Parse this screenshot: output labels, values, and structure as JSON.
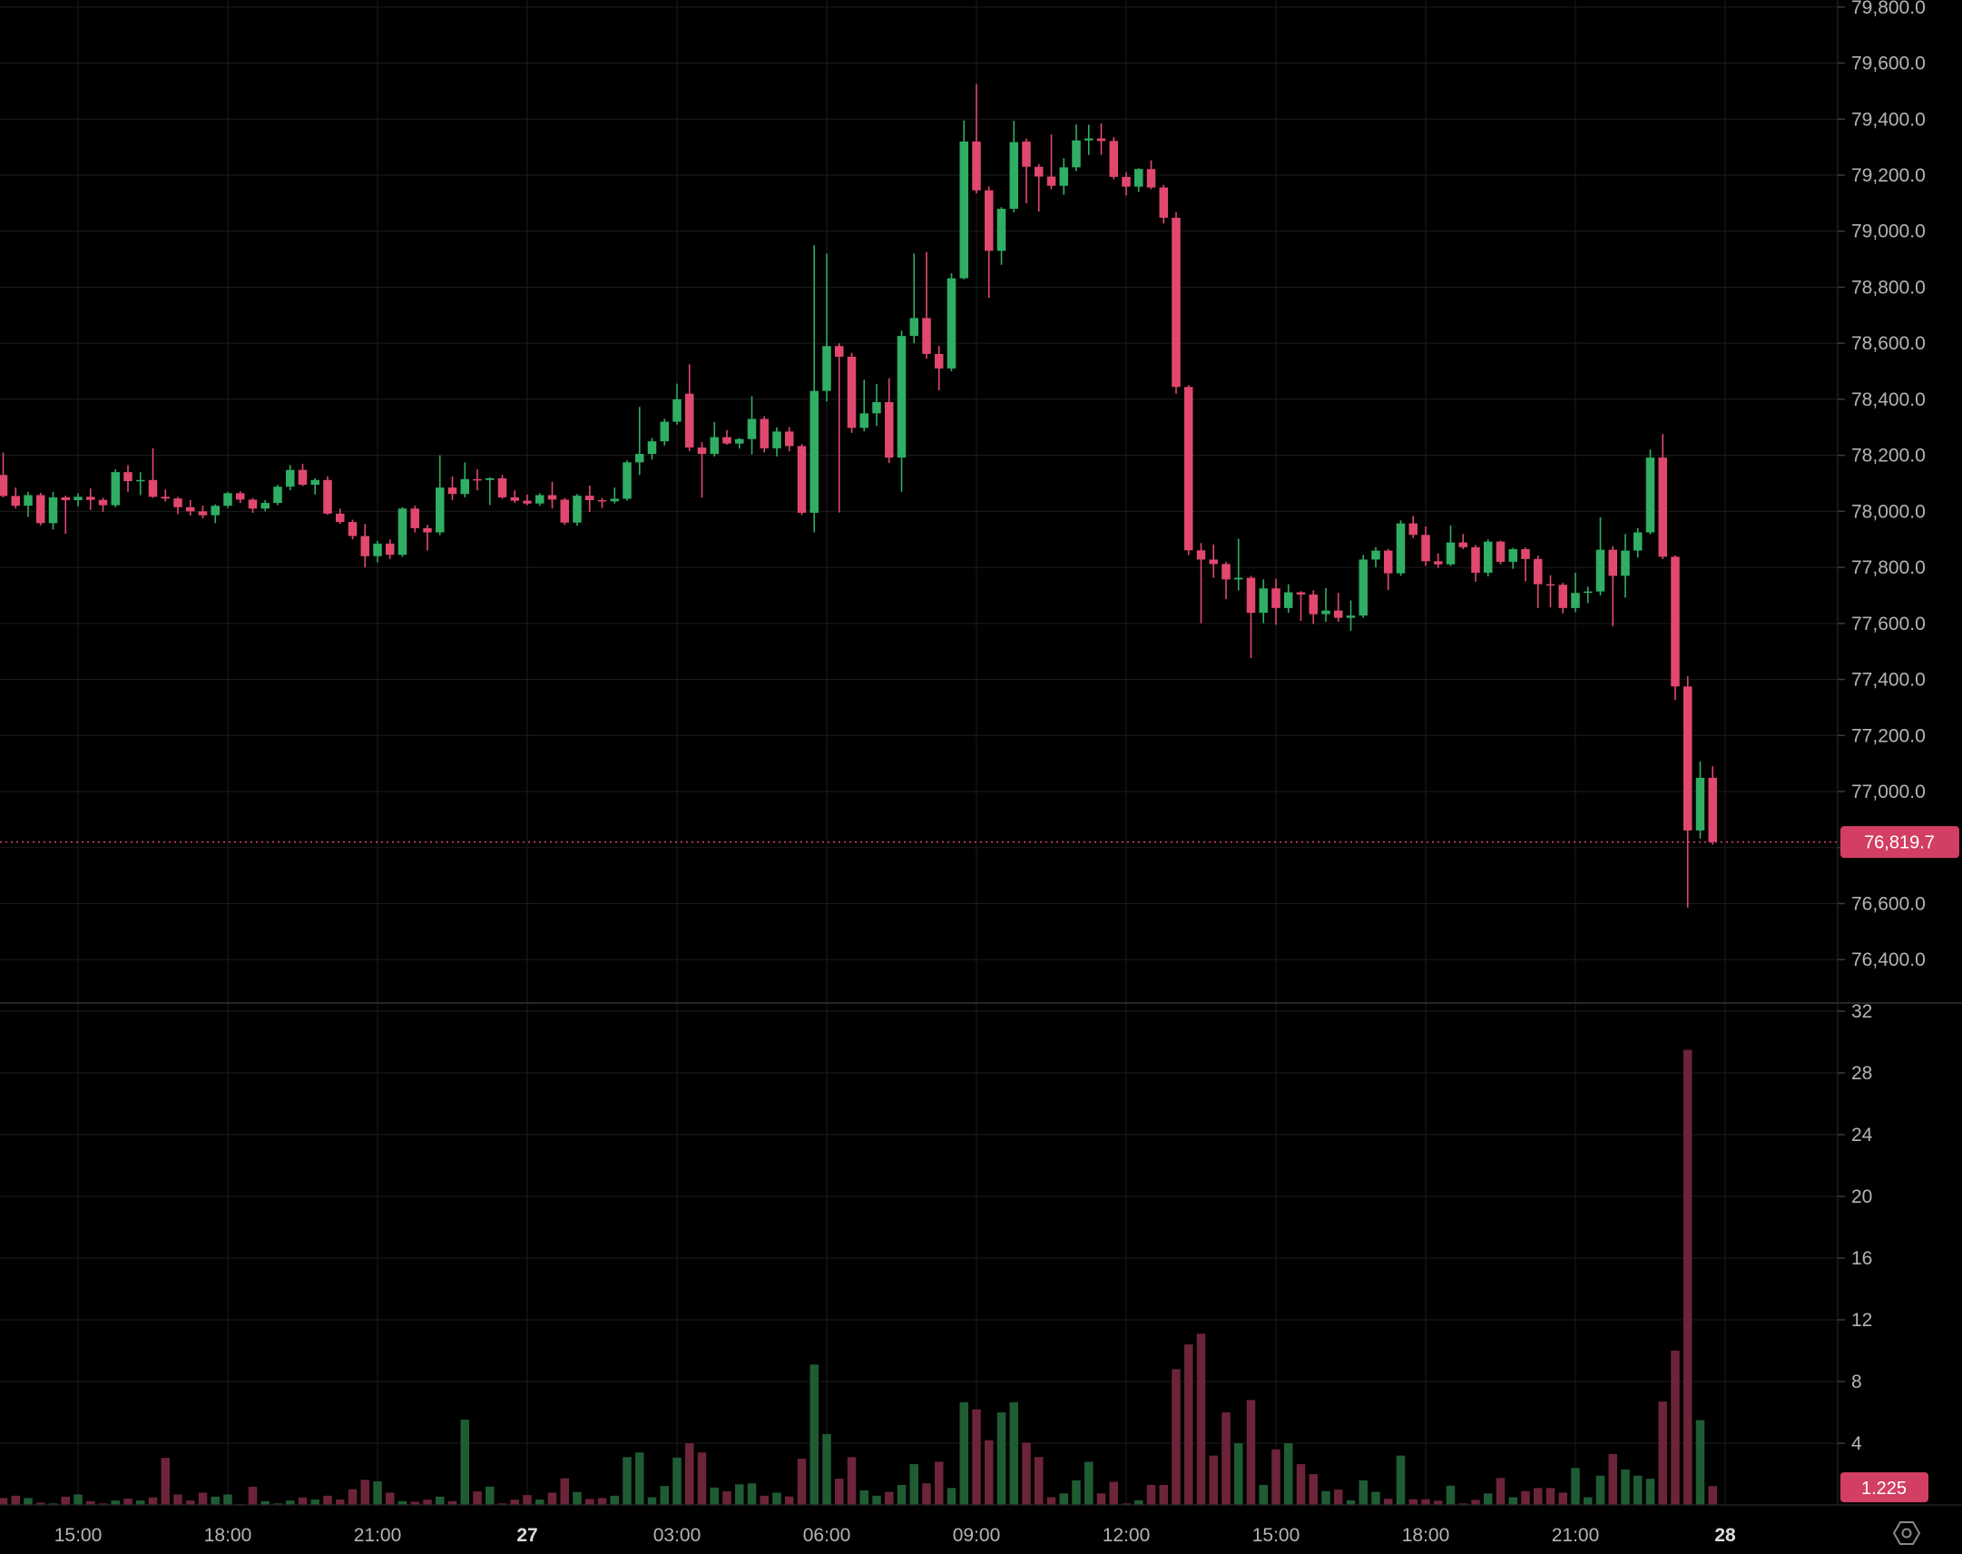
{
  "chart_data": {
    "type": "candlestick",
    "panes": [
      "price",
      "volume"
    ],
    "grid": true,
    "legend_position": "none",
    "last_price": {
      "text": "76,819.7",
      "value": 76819.7
    },
    "last_volume": {
      "text": "1.225",
      "value": 1.225
    },
    "price_axis": {
      "side": "right",
      "min": 76400,
      "max": 79800,
      "step": 200,
      "labels": [
        "79,800.0",
        "79,600.0",
        "79,400.0",
        "79,200.0",
        "79,000.0",
        "78,800.0",
        "78,600.0",
        "78,400.0",
        "78,200.0",
        "78,000.0",
        "77,800.0",
        "77,600.0",
        "77,400.0",
        "77,200.0",
        "77,000.0",
        "76,800.0",
        "76,600.0",
        "76,400.0"
      ]
    },
    "volume_axis": {
      "side": "right",
      "min": 0,
      "max": 32,
      "step": 4,
      "labels": [
        "32",
        "28",
        "24",
        "20",
        "16",
        "12",
        "8",
        "4"
      ]
    },
    "time_axis": {
      "interval_minutes": 15,
      "ticks": [
        {
          "label": "15:00",
          "index": 6,
          "bold": false
        },
        {
          "label": "18:00",
          "index": 18,
          "bold": false
        },
        {
          "label": "21:00",
          "index": 30,
          "bold": false
        },
        {
          "label": "27",
          "index": 42,
          "bold": true
        },
        {
          "label": "03:00",
          "index": 54,
          "bold": false
        },
        {
          "label": "06:00",
          "index": 66,
          "bold": false
        },
        {
          "label": "09:00",
          "index": 78,
          "bold": false
        },
        {
          "label": "12:00",
          "index": 90,
          "bold": false
        },
        {
          "label": "15:00",
          "index": 102,
          "bold": false
        },
        {
          "label": "18:00",
          "index": 114,
          "bold": false
        },
        {
          "label": "21:00",
          "index": 126,
          "bold": false
        },
        {
          "label": "28",
          "index": 138,
          "bold": true
        }
      ]
    },
    "colors": {
      "background": "#000000",
      "grid": "#1c1c1c",
      "up": "#2FAE64",
      "down": "#E1486E",
      "volume_up": "#1F5C34",
      "volume_down": "#6C2439",
      "badge": "#D23F63",
      "last_price_line": "#E84876",
      "axis_text": "#b4b4b8",
      "divider": "#262626",
      "tick_mark": "#3c3c3c",
      "icon": "#8a8a8a"
    },
    "icons": {
      "bottom_right": "settings-icon"
    },
    "candles_format": [
      "open",
      "high",
      "low",
      "close",
      "volume"
    ],
    "candles": [
      [
        78130,
        78210,
        78050,
        78055,
        0.45
      ],
      [
        78055,
        78085,
        78010,
        78020,
        0.6
      ],
      [
        78020,
        78070,
        77980,
        78058,
        0.45
      ],
      [
        78058,
        78066,
        77950,
        77958,
        0.15
      ],
      [
        77958,
        78070,
        77935,
        78050,
        0.1
      ],
      [
        78050,
        78056,
        77920,
        78040,
        0.54
      ],
      [
        78040,
        78065,
        78018,
        78052,
        0.68
      ],
      [
        78052,
        78082,
        78005,
        78041,
        0.25
      ],
      [
        78041,
        78048,
        77998,
        78022,
        0.1
      ],
      [
        78022,
        78150,
        78015,
        78140,
        0.29
      ],
      [
        78140,
        78165,
        78070,
        78108,
        0.41
      ],
      [
        78108,
        78140,
        78058,
        78112,
        0.29
      ],
      [
        78112,
        78225,
        78048,
        78052,
        0.49
      ],
      [
        78052,
        78078,
        78035,
        78046,
        3.05
      ],
      [
        78046,
        78052,
        77990,
        78015,
        0.68
      ],
      [
        78015,
        78040,
        77985,
        78000,
        0.29
      ],
      [
        78000,
        78020,
        77975,
        77986,
        0.8
      ],
      [
        77986,
        78025,
        77958,
        78020,
        0.54
      ],
      [
        78020,
        78070,
        78012,
        78065,
        0.68
      ],
      [
        78065,
        78072,
        78030,
        78042,
        0.06
      ],
      [
        78042,
        78048,
        77995,
        78010,
        1.18
      ],
      [
        78010,
        78040,
        78000,
        78030,
        0.25
      ],
      [
        78030,
        78095,
        78022,
        78088,
        0.1
      ],
      [
        78088,
        78165,
        78075,
        78148,
        0.29
      ],
      [
        78148,
        78170,
        78090,
        78095,
        0.49
      ],
      [
        78095,
        78118,
        78060,
        78112,
        0.35
      ],
      [
        78112,
        78125,
        77988,
        77992,
        0.6
      ],
      [
        77992,
        78010,
        77955,
        77962,
        0.35
      ],
      [
        77962,
        77970,
        77900,
        77912,
        1.02
      ],
      [
        77912,
        77955,
        77800,
        77840,
        1.63
      ],
      [
        77840,
        77895,
        77818,
        77885,
        1.53
      ],
      [
        77885,
        77900,
        77830,
        77845,
        0.8
      ],
      [
        77845,
        78015,
        77838,
        78010,
        0.25
      ],
      [
        78010,
        78020,
        77925,
        77940,
        0.21
      ],
      [
        77940,
        77952,
        77860,
        77925,
        0.35
      ],
      [
        77925,
        78200,
        77915,
        78085,
        0.54
      ],
      [
        78085,
        78125,
        78040,
        78062,
        0.25
      ],
      [
        78062,
        78175,
        78050,
        78115,
        5.53
      ],
      [
        78115,
        78150,
        78075,
        78112,
        0.88
      ],
      [
        78112,
        78122,
        78022,
        78118,
        1.19
      ],
      [
        78118,
        78130,
        78045,
        78050,
        0.1
      ],
      [
        78050,
        78075,
        78030,
        78038,
        0.35
      ],
      [
        78038,
        78060,
        78022,
        78028,
        0.64
      ],
      [
        78028,
        78065,
        78020,
        78058,
        0.35
      ],
      [
        78058,
        78106,
        78010,
        78042,
        0.8
      ],
      [
        78042,
        78048,
        77952,
        77960,
        1.73
      ],
      [
        77960,
        78062,
        77948,
        78056,
        0.84
      ],
      [
        78056,
        78092,
        77998,
        78040,
        0.39
      ],
      [
        78040,
        78048,
        78012,
        78036,
        0.45
      ],
      [
        78036,
        78085,
        78028,
        78045,
        0.6
      ],
      [
        78045,
        78182,
        78038,
        78175,
        3.1
      ],
      [
        78175,
        78373,
        78130,
        78205,
        3.4
      ],
      [
        78205,
        78262,
        78185,
        78250,
        0.5
      ],
      [
        78250,
        78330,
        78235,
        78320,
        1.23
      ],
      [
        78320,
        78456,
        78310,
        78400,
        3.07
      ],
      [
        78420,
        78525,
        78215,
        78228,
        4.0
      ],
      [
        78228,
        78247,
        78049,
        78205,
        3.4
      ],
      [
        78205,
        78319,
        78196,
        78265,
        1.13
      ],
      [
        78265,
        78290,
        78238,
        78242,
        0.88
      ],
      [
        78242,
        78262,
        78224,
        78258,
        1.34
      ],
      [
        78258,
        78411,
        78203,
        78330,
        1.4
      ],
      [
        78330,
        78340,
        78210,
        78225,
        0.6
      ],
      [
        78225,
        78300,
        78196,
        78285,
        0.8
      ],
      [
        78285,
        78301,
        78215,
        78233,
        0.55
      ],
      [
        78233,
        78240,
        77987,
        77995,
        3.0
      ],
      [
        77995,
        78950,
        77925,
        78430,
        9.1
      ],
      [
        78430,
        78920,
        78392,
        78590,
        4.6
      ],
      [
        78590,
        78600,
        77996,
        78552,
        1.7
      ],
      [
        78552,
        78566,
        78280,
        78298,
        3.1
      ],
      [
        78298,
        78470,
        78286,
        78350,
        0.95
      ],
      [
        78350,
        78455,
        78305,
        78390,
        0.6
      ],
      [
        78390,
        78475,
        78172,
        78192,
        0.85
      ],
      [
        78192,
        78645,
        78070,
        78626,
        1.3
      ],
      [
        78626,
        78920,
        78600,
        78690,
        2.65
      ],
      [
        78690,
        78926,
        78545,
        78562,
        1.4
      ],
      [
        78562,
        78590,
        78432,
        78510,
        2.8
      ],
      [
        78510,
        78850,
        78500,
        78832,
        1.1
      ],
      [
        78832,
        79395,
        78828,
        79320,
        6.66
      ],
      [
        79320,
        79525,
        79135,
        79146,
        6.2
      ],
      [
        79146,
        79160,
        78762,
        78930,
        4.2
      ],
      [
        78930,
        79086,
        78880,
        79080,
        6.0
      ],
      [
        79080,
        79394,
        79068,
        79318,
        6.66
      ],
      [
        79320,
        79331,
        79100,
        79230,
        4.04
      ],
      [
        79230,
        79240,
        79070,
        79195,
        3.11
      ],
      [
        79195,
        79345,
        79150,
        79162,
        0.5
      ],
      [
        79162,
        79260,
        79130,
        79228,
        0.75
      ],
      [
        79228,
        79381,
        79215,
        79324,
        1.6
      ],
      [
        79324,
        79380,
        79272,
        79331,
        2.8
      ],
      [
        79331,
        79385,
        79273,
        79322,
        0.75
      ],
      [
        79322,
        79335,
        79185,
        79194,
        1.5
      ],
      [
        79194,
        79210,
        79128,
        79159,
        0.1
      ],
      [
        79159,
        79225,
        79140,
        79222,
        0.3
      ],
      [
        79222,
        79253,
        79150,
        79156,
        1.3
      ],
      [
        79156,
        79165,
        79027,
        79048,
        1.3
      ],
      [
        79048,
        79068,
        78420,
        78444,
        8.8
      ],
      [
        78444,
        78451,
        77844,
        77861,
        10.4
      ],
      [
        77861,
        77887,
        77601,
        77828,
        11.1
      ],
      [
        77828,
        77882,
        77763,
        77812,
        3.2
      ],
      [
        77812,
        77820,
        77687,
        77757,
        6.0
      ],
      [
        77757,
        77903,
        77718,
        77763,
        4.0
      ],
      [
        77763,
        77770,
        77476,
        77638,
        6.8
      ],
      [
        77638,
        77757,
        77601,
        77725,
        1.3
      ],
      [
        77725,
        77760,
        77595,
        77655,
        3.6
      ],
      [
        77655,
        77740,
        77638,
        77711,
        4.0
      ],
      [
        77711,
        77715,
        77609,
        77703,
        2.65
      ],
      [
        77703,
        77718,
        77598,
        77633,
        2.0
      ],
      [
        77633,
        77726,
        77606,
        77646,
        0.9
      ],
      [
        77646,
        77709,
        77606,
        77620,
        1.0
      ],
      [
        77620,
        77682,
        77574,
        77628,
        0.3
      ],
      [
        77628,
        77845,
        77620,
        77828,
        1.6
      ],
      [
        77828,
        77872,
        77800,
        77860,
        0.85
      ],
      [
        77860,
        77866,
        77719,
        77779,
        0.4
      ],
      [
        77779,
        77968,
        77770,
        77957,
        3.2
      ],
      [
        77957,
        77984,
        77905,
        77916,
        0.37
      ],
      [
        77916,
        77946,
        77806,
        77822,
        0.37
      ],
      [
        77822,
        77850,
        77798,
        77811,
        0.28
      ],
      [
        77811,
        77950,
        77805,
        77889,
        1.25
      ],
      [
        77889,
        77919,
        77865,
        77872,
        0.1
      ],
      [
        77872,
        77880,
        77749,
        77781,
        0.33
      ],
      [
        77781,
        77900,
        77768,
        77892,
        0.75
      ],
      [
        77892,
        77896,
        77811,
        77820,
        1.75
      ],
      [
        77820,
        77870,
        77795,
        77865,
        0.5
      ],
      [
        77865,
        77871,
        77750,
        77830,
        0.9
      ],
      [
        77830,
        77842,
        77655,
        77740,
        1.1
      ],
      [
        77740,
        77772,
        77658,
        77738,
        1.1
      ],
      [
        77738,
        77745,
        77636,
        77655,
        0.8
      ],
      [
        77655,
        77781,
        77640,
        77709,
        2.4
      ],
      [
        77709,
        77731,
        77672,
        77714,
        0.5
      ],
      [
        77714,
        77979,
        77700,
        77863,
        1.9
      ],
      [
        77863,
        77876,
        77590,
        77770,
        3.3
      ],
      [
        77770,
        77919,
        77692,
        77860,
        2.3
      ],
      [
        77860,
        77940,
        77835,
        77925,
        1.9
      ],
      [
        77925,
        78221,
        77918,
        78192,
        1.7
      ],
      [
        78192,
        78276,
        77830,
        77838,
        6.7
      ],
      [
        77838,
        77843,
        77327,
        77375,
        10.0
      ],
      [
        77375,
        77411,
        76586,
        76861,
        29.5
      ],
      [
        76861,
        77107,
        76832,
        77049,
        5.5
      ],
      [
        77049,
        77090,
        76810,
        76819.7,
        1.225
      ]
    ]
  }
}
